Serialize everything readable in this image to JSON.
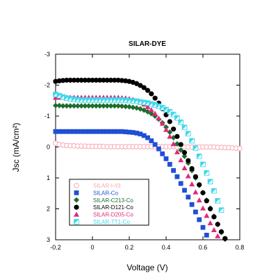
{
  "chart_data": {
    "type": "scatter",
    "title": "SILAR-DYE",
    "xlabel": "Voltage (V)",
    "ylabel": "Jsc (mA/cm²)",
    "xlim": [
      -0.2,
      0.8
    ],
    "ylim": [
      -3,
      3
    ],
    "y_inverted": true,
    "x_ticks": [
      "-0.2",
      "0",
      "0.2",
      "0.4",
      "0.6",
      "0.8"
    ],
    "y_ticks": [
      "-3",
      "-2",
      "-1",
      "0",
      "1",
      "2",
      "3"
    ],
    "grid": false,
    "legend_position": "lower-left",
    "series": [
      {
        "name": "SILAR-I-/I3",
        "marker": "open-circle",
        "color": "#f7a6b7",
        "x": [
          -0.2,
          -0.18,
          -0.16,
          -0.14,
          -0.12,
          -0.1,
          -0.08,
          -0.06,
          -0.04,
          -0.02,
          0.0,
          0.02,
          0.04,
          0.06,
          0.08,
          0.1,
          0.12,
          0.14,
          0.16,
          0.18,
          0.2,
          0.22,
          0.24,
          0.26,
          0.28,
          0.3,
          0.32,
          0.34,
          0.36,
          0.38,
          0.4,
          0.42,
          0.44,
          0.46,
          0.48,
          0.5,
          0.52,
          0.54,
          0.56,
          0.58,
          0.6,
          0.62,
          0.64,
          0.66,
          0.68,
          0.7,
          0.72,
          0.74,
          0.76,
          0.78,
          0.8
        ],
        "y": [
          -0.12,
          -0.08,
          -0.06,
          -0.05,
          -0.04,
          -0.04,
          -0.03,
          -0.03,
          -0.03,
          -0.02,
          -0.02,
          -0.02,
          -0.02,
          -0.02,
          -0.01,
          -0.01,
          -0.01,
          -0.01,
          -0.01,
          -0.01,
          -0.01,
          -0.01,
          -0.01,
          -0.01,
          -0.01,
          -0.01,
          -0.01,
          -0.01,
          -0.01,
          -0.01,
          -0.01,
          -0.01,
          -0.01,
          0.0,
          0.0,
          0.0,
          0.0,
          0.0,
          0.0,
          0.0,
          0.0,
          0.0,
          0.0,
          0.0,
          0.01,
          0.01,
          0.02,
          0.02,
          0.03,
          0.04,
          0.05
        ]
      },
      {
        "name": "SILAR-Co",
        "marker": "square",
        "color": "#1f4fd6",
        "x": [
          -0.2,
          -0.18,
          -0.16,
          -0.14,
          -0.12,
          -0.1,
          -0.08,
          -0.06,
          -0.04,
          -0.02,
          0.0,
          0.02,
          0.04,
          0.06,
          0.08,
          0.1,
          0.12,
          0.14,
          0.16,
          0.18,
          0.2,
          0.22,
          0.24,
          0.26,
          0.28,
          0.3,
          0.32,
          0.34,
          0.36,
          0.38,
          0.4,
          0.42,
          0.44,
          0.46,
          0.48,
          0.5,
          0.52,
          0.54,
          0.56,
          0.58,
          0.6,
          0.62,
          0.64,
          0.66
        ],
        "y": [
          -0.5,
          -0.5,
          -0.5,
          -0.5,
          -0.5,
          -0.5,
          -0.5,
          -0.5,
          -0.5,
          -0.5,
          -0.5,
          -0.5,
          -0.5,
          -0.5,
          -0.5,
          -0.5,
          -0.5,
          -0.5,
          -0.5,
          -0.49,
          -0.48,
          -0.47,
          -0.45,
          -0.42,
          -0.37,
          -0.3,
          -0.2,
          -0.08,
          0.06,
          0.22,
          0.38,
          0.56,
          0.76,
          0.96,
          1.18,
          1.4,
          1.62,
          1.86,
          2.1,
          2.35,
          2.6,
          2.85,
          3.05,
          3.25
        ]
      },
      {
        "name": "SILAR-C213-Co",
        "marker": "diamond",
        "color": "#1d6e2b",
        "x": [
          -0.2,
          -0.18,
          -0.16,
          -0.14,
          -0.12,
          -0.1,
          -0.08,
          -0.06,
          -0.04,
          -0.02,
          0.0,
          0.02,
          0.04,
          0.06,
          0.08,
          0.1,
          0.12,
          0.14,
          0.16,
          0.18,
          0.2,
          0.22,
          0.24,
          0.26,
          0.28,
          0.3,
          0.32,
          0.34,
          0.36,
          0.38,
          0.4,
          0.42,
          0.44,
          0.46,
          0.48,
          0.5,
          0.52,
          0.54,
          0.56,
          0.58,
          0.6,
          0.62,
          0.64,
          0.66,
          0.68,
          0.7,
          0.72
        ],
        "y": [
          -1.34,
          -1.34,
          -1.33,
          -1.33,
          -1.33,
          -1.33,
          -1.33,
          -1.33,
          -1.33,
          -1.33,
          -1.33,
          -1.33,
          -1.33,
          -1.33,
          -1.33,
          -1.33,
          -1.33,
          -1.33,
          -1.32,
          -1.31,
          -1.3,
          -1.28,
          -1.26,
          -1.23,
          -1.19,
          -1.14,
          -1.08,
          -1.0,
          -0.9,
          -0.78,
          -0.64,
          -0.48,
          -0.3,
          -0.1,
          0.1,
          0.3,
          0.52,
          0.76,
          1.0,
          1.24,
          1.48,
          1.72,
          1.98,
          2.24,
          2.5,
          2.76,
          2.98
        ]
      },
      {
        "name": "SILAR-D121-Co",
        "marker": "circle",
        "color": "#000000",
        "x": [
          -0.2,
          -0.18,
          -0.16,
          -0.14,
          -0.12,
          -0.1,
          -0.08,
          -0.06,
          -0.04,
          -0.02,
          0.0,
          0.02,
          0.04,
          0.06,
          0.08,
          0.1,
          0.12,
          0.14,
          0.16,
          0.18,
          0.2,
          0.22,
          0.24,
          0.26,
          0.28,
          0.3,
          0.32,
          0.34,
          0.36,
          0.38,
          0.4,
          0.42,
          0.44,
          0.46,
          0.48,
          0.5,
          0.52,
          0.54,
          0.56,
          0.58,
          0.6,
          0.62,
          0.64,
          0.66,
          0.68,
          0.7,
          0.72
        ],
        "y": [
          -2.12,
          -2.14,
          -2.15,
          -2.16,
          -2.16,
          -2.16,
          -2.16,
          -2.16,
          -2.16,
          -2.16,
          -2.16,
          -2.16,
          -2.16,
          -2.16,
          -2.16,
          -2.16,
          -2.16,
          -2.16,
          -2.15,
          -2.14,
          -2.12,
          -2.09,
          -2.05,
          -1.99,
          -1.92,
          -1.83,
          -1.72,
          -1.58,
          -1.42,
          -1.24,
          -1.04,
          -0.82,
          -0.58,
          -0.34,
          -0.08,
          0.18,
          0.44,
          0.7,
          0.96,
          1.22,
          1.48,
          1.74,
          2.0,
          2.26,
          2.5,
          2.74,
          2.96
        ]
      },
      {
        "name": "SILAR-D205-Co",
        "marker": "triangle",
        "color": "#e0287a",
        "x": [
          -0.2,
          -0.18,
          -0.16,
          -0.14,
          -0.12,
          -0.1,
          -0.08,
          -0.06,
          -0.04,
          -0.02,
          0.0,
          0.02,
          0.04,
          0.06,
          0.08,
          0.1,
          0.12,
          0.14,
          0.16,
          0.18,
          0.2,
          0.22,
          0.24,
          0.26,
          0.28,
          0.3,
          0.32,
          0.34,
          0.36,
          0.38,
          0.4,
          0.42,
          0.44,
          0.46,
          0.48,
          0.5,
          0.52,
          0.54,
          0.56,
          0.58,
          0.6,
          0.62,
          0.64,
          0.66,
          0.68,
          0.7
        ],
        "y": [
          -1.6,
          -1.6,
          -1.6,
          -1.6,
          -1.6,
          -1.6,
          -1.6,
          -1.6,
          -1.6,
          -1.6,
          -1.6,
          -1.6,
          -1.6,
          -1.6,
          -1.6,
          -1.6,
          -1.6,
          -1.6,
          -1.59,
          -1.58,
          -1.56,
          -1.53,
          -1.49,
          -1.44,
          -1.38,
          -1.3,
          -1.2,
          -1.08,
          -0.93,
          -0.76,
          -0.56,
          -0.34,
          -0.1,
          0.16,
          0.42,
          0.68,
          0.94,
          1.2,
          1.46,
          1.72,
          1.98,
          2.22,
          2.46,
          2.68,
          2.88,
          3.05
        ]
      },
      {
        "name": "SILAR-TT1-Co",
        "marker": "half-square",
        "color": "#3fd8ea",
        "x": [
          -0.2,
          -0.18,
          -0.16,
          -0.14,
          -0.12,
          -0.1,
          -0.08,
          -0.06,
          -0.04,
          -0.02,
          0.0,
          0.02,
          0.04,
          0.06,
          0.08,
          0.1,
          0.12,
          0.14,
          0.16,
          0.18,
          0.2,
          0.22,
          0.24,
          0.26,
          0.28,
          0.3,
          0.32,
          0.34,
          0.36,
          0.38,
          0.4,
          0.42,
          0.44,
          0.46,
          0.48,
          0.5,
          0.52,
          0.54,
          0.56,
          0.58,
          0.6,
          0.62,
          0.64,
          0.66,
          0.68,
          0.7
        ],
        "y": [
          -1.7,
          -1.66,
          -1.62,
          -1.58,
          -1.56,
          -1.54,
          -1.53,
          -1.52,
          -1.52,
          -1.52,
          -1.52,
          -1.52,
          -1.52,
          -1.52,
          -1.52,
          -1.52,
          -1.52,
          -1.52,
          -1.52,
          -1.51,
          -1.5,
          -1.49,
          -1.48,
          -1.46,
          -1.44,
          -1.42,
          -1.39,
          -1.36,
          -1.32,
          -1.27,
          -1.21,
          -1.14,
          -1.05,
          -0.94,
          -0.8,
          -0.63,
          -0.43,
          -0.2,
          0.04,
          0.3,
          0.56,
          0.84,
          1.12,
          1.42,
          1.74,
          2.04
        ]
      }
    ]
  }
}
